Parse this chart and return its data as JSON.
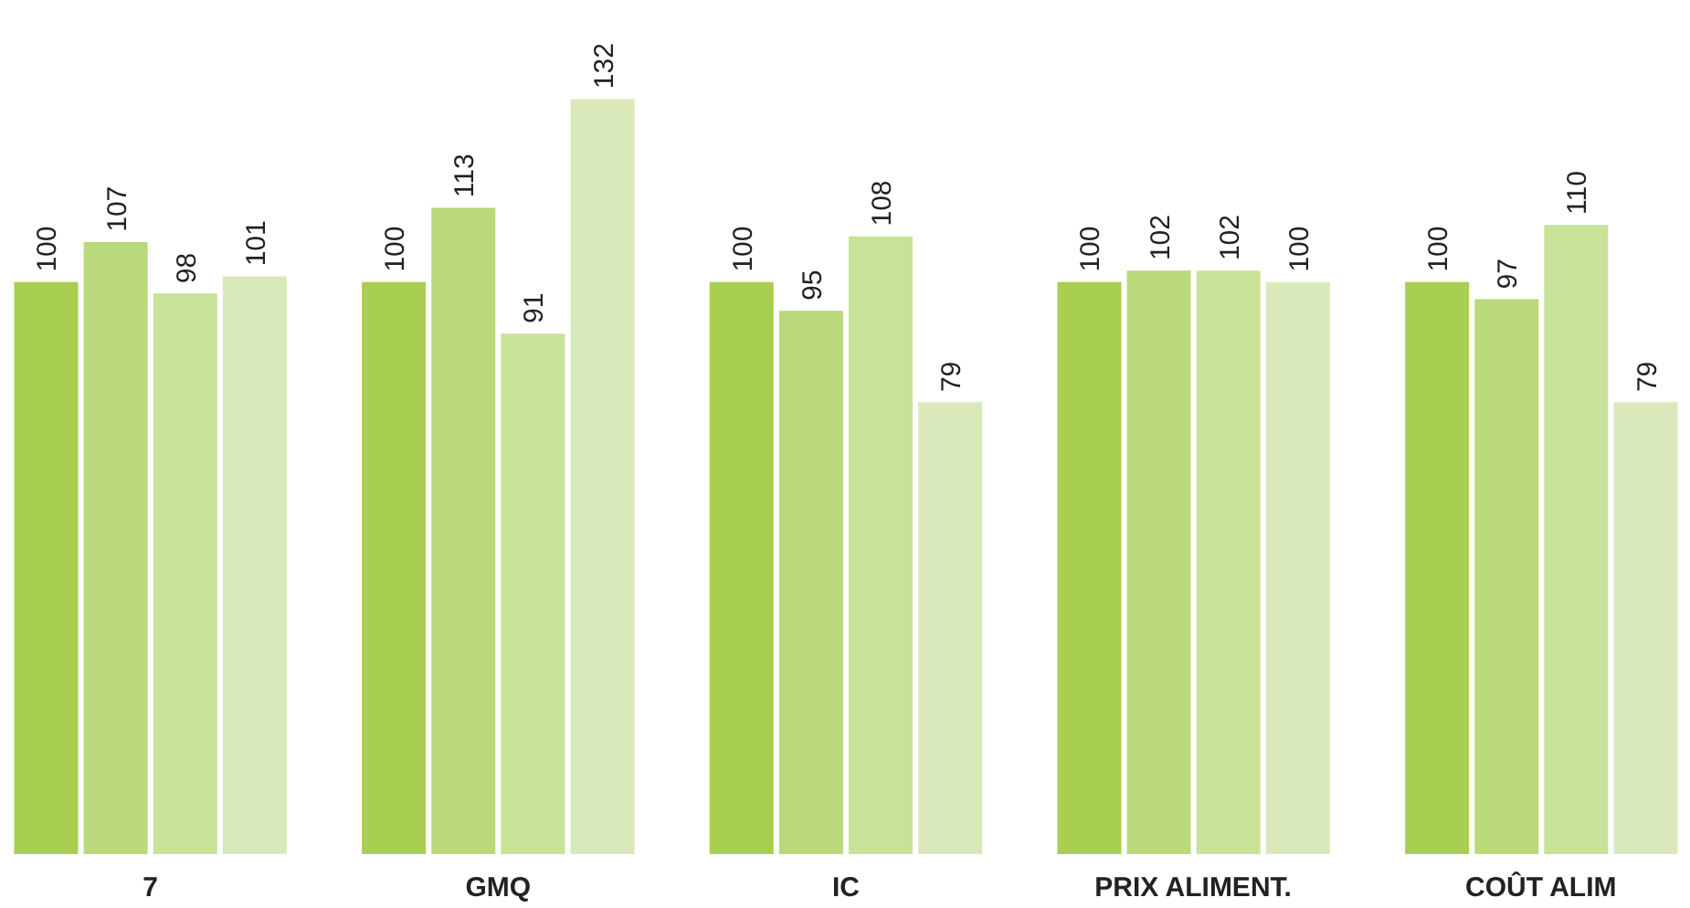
{
  "chart_data": {
    "type": "bar",
    "categories": [
      "7",
      "GMQ",
      "IC",
      "PRIX ALIMENT.",
      "COÛT ALIM"
    ],
    "series": [
      {
        "color": "#a8cf50",
        "values": [
          100,
          100,
          100,
          100,
          100
        ]
      },
      {
        "color": "#b9d97a",
        "values": [
          107,
          113,
          95,
          102,
          97
        ]
      },
      {
        "color": "#c9e299",
        "values": [
          98,
          91,
          108,
          102,
          110
        ]
      },
      {
        "color": "#d9e9b9",
        "values": [
          101,
          132,
          79,
          100,
          79
        ]
      }
    ],
    "data_labels": true
  }
}
